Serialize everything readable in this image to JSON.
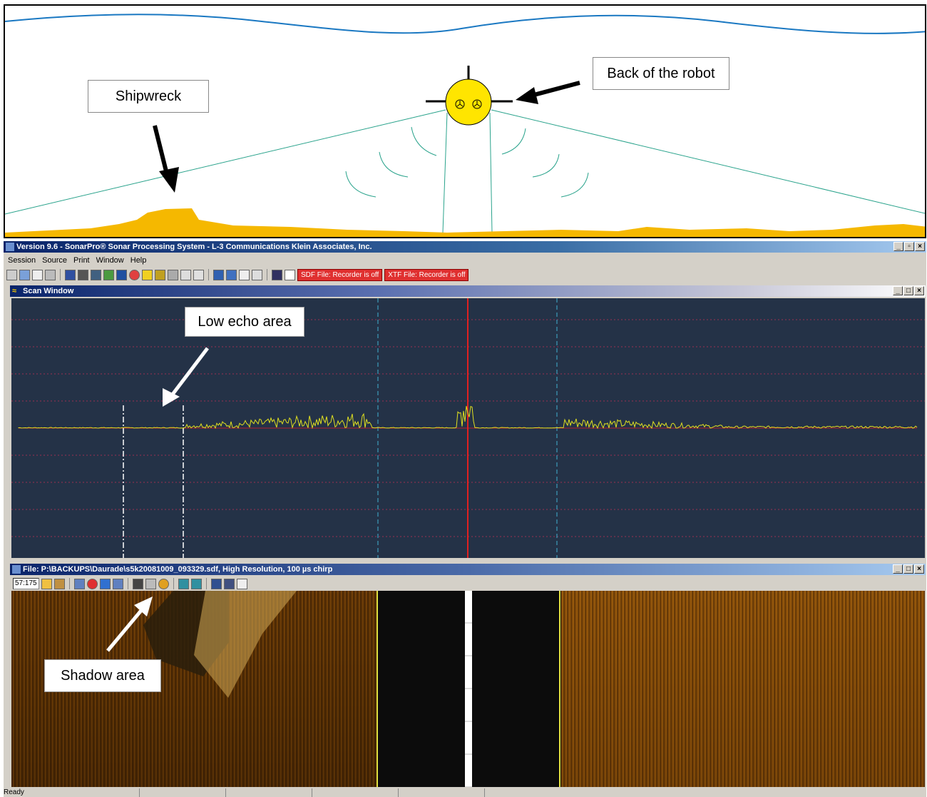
{
  "diagram": {
    "callout_shipwreck": "Shipwreck",
    "callout_robot": "Back of the robot",
    "colors": {
      "sea": "#1a78c2",
      "seabed": "#f5b800",
      "robot": "#ffe500",
      "beam": "#2aa38c"
    }
  },
  "app": {
    "title": "Version 9.6 - SonarPro® Sonar Processing System - L-3 Communications Klein Associates, Inc.",
    "menu": [
      "Session",
      "Source",
      "Print",
      "Window",
      "Help"
    ],
    "toolbar": {
      "sdf_status": "SDF File: Recorder is off",
      "xtf_status": "XTF File: Recorder is off"
    },
    "scan_window": {
      "title": "Scan Window",
      "callout": "Low echo area"
    },
    "file_window": {
      "title": "File: P:\\BACKUPS\\Daurade\\s5k20081009_093329.sdf, High Resolution, 100 µs chirp",
      "position": "57:175",
      "callout": "Shadow area"
    },
    "status": "Ready"
  }
}
